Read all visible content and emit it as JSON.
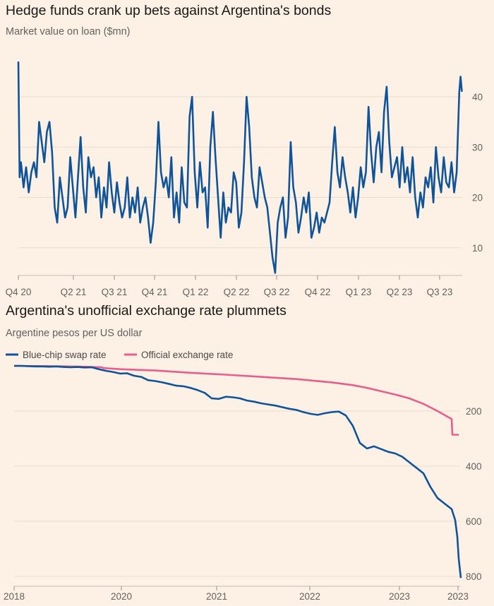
{
  "chart_data": [
    {
      "type": "line",
      "title": "Hedge funds crank up bets against Argentina's bonds",
      "subtitle": "Market value on loan ($mn)",
      "x_ticks": [
        "Q4 20",
        "Q2 21",
        "Q3 21",
        "Q4 21",
        "Q1 22",
        "Q2 22",
        "Q3 22",
        "Q4 22",
        "Q1 23",
        "Q2 23",
        "Q3 23"
      ],
      "y_ticks": [
        10,
        20,
        30,
        40
      ],
      "ylim": [
        4.5,
        48
      ],
      "xlim": [
        0,
        34.5
      ],
      "grid": true,
      "series": [
        {
          "color": "#0f5499",
          "x": [
            0,
            0.1,
            0.2,
            0.4,
            0.6,
            0.8,
            1.0,
            1.2,
            1.4,
            1.6,
            1.8,
            2.0,
            2.2,
            2.4,
            2.6,
            2.8,
            3.0,
            3.2,
            3.4,
            3.6,
            3.8,
            4.0,
            4.2,
            4.4,
            4.6,
            4.8,
            5.0,
            5.2,
            5.4,
            5.6,
            5.8,
            6.0,
            6.2,
            6.4,
            6.6,
            6.8,
            7.0,
            7.2,
            7.4,
            7.6,
            7.8,
            8.0,
            8.2,
            8.4,
            8.6,
            8.8,
            9.0,
            9.2,
            9.4,
            9.6,
            9.8,
            10.0,
            10.2,
            10.4,
            10.6,
            10.8,
            11.0,
            11.2,
            11.4,
            11.6,
            11.8,
            12.0,
            12.2,
            12.4,
            12.6,
            12.8,
            13.0,
            13.2,
            13.4,
            13.6,
            13.8,
            14.0,
            14.2,
            14.4,
            14.6,
            14.8,
            15.0,
            15.2,
            15.4,
            15.6,
            15.8,
            16.0,
            16.2,
            16.4,
            16.6,
            16.8,
            17.0,
            17.2,
            17.4,
            17.6,
            17.8,
            18.0,
            18.2,
            18.4,
            18.6,
            18.8,
            19.0,
            19.2,
            19.4,
            19.6,
            19.8,
            20.0,
            20.2,
            20.4,
            20.6,
            20.8,
            21.0,
            21.2,
            21.4,
            21.6,
            21.8,
            22.0,
            22.2,
            22.4,
            22.6,
            22.8,
            23.0,
            23.2,
            23.4,
            23.6,
            23.8,
            24.0,
            24.2,
            24.4,
            24.6,
            24.8,
            25.0,
            25.2,
            25.4,
            25.6,
            25.8,
            26.0,
            26.2,
            26.4,
            26.6,
            26.8,
            27.0,
            27.2,
            27.4,
            27.6,
            27.8,
            28.0,
            28.2,
            28.4,
            28.6,
            28.8,
            29.0,
            29.2,
            29.4,
            29.6,
            29.8,
            30.0,
            30.2,
            30.4,
            30.6,
            30.8,
            31.0,
            31.2,
            31.4,
            31.6,
            31.8,
            32.0,
            32.2,
            32.4,
            32.6,
            32.8,
            33.0,
            33.2,
            33.4,
            33.6,
            33.8,
            34.0,
            34.1,
            34.2
          ],
          "values": [
            47,
            24,
            27,
            22,
            26,
            21,
            25,
            27,
            24,
            35,
            31,
            27,
            33,
            35,
            29,
            18,
            15,
            24,
            20,
            16,
            18,
            28,
            22,
            16,
            24,
            32,
            22,
            17,
            28,
            24,
            26,
            20,
            24,
            16,
            22,
            18,
            27,
            21,
            17,
            23,
            19,
            16,
            18,
            24,
            16,
            20,
            17,
            22,
            15,
            18,
            20,
            16,
            11,
            15,
            23,
            35,
            25,
            22,
            24,
            20,
            28,
            16,
            21,
            15,
            26,
            19,
            18,
            36,
            40,
            25,
            18,
            27,
            21,
            22,
            14,
            30,
            37,
            28,
            20,
            12,
            21,
            15,
            18,
            17,
            25,
            23,
            14,
            17,
            27,
            40,
            34,
            24,
            20,
            18,
            26,
            23,
            20,
            18,
            13,
            8,
            5,
            15,
            18,
            20,
            12,
            16,
            31,
            22,
            19,
            13,
            16,
            20,
            17,
            21,
            12,
            14,
            17,
            13,
            16,
            15,
            17,
            19,
            27,
            34,
            25,
            22,
            28,
            24,
            21,
            17,
            22,
            16,
            20,
            26,
            22,
            25,
            38,
            29,
            23,
            30,
            33,
            25,
            37,
            42,
            31,
            24,
            26,
            28,
            22,
            30,
            23,
            26,
            21,
            28,
            20,
            16,
            21,
            18,
            24,
            22,
            26,
            19,
            30,
            24,
            21,
            28,
            23,
            22,
            27,
            21,
            25,
            41,
            44,
            41
          ]
        }
      ]
    },
    {
      "type": "line",
      "title": "Argentina's unofficial exchange rate plummets",
      "subtitle": "Argentine pesos per US dollar",
      "x_ticks": [
        "2018",
        "2020",
        "2021",
        "2022",
        "2023",
        "2023"
      ],
      "y_ticks": [
        200,
        400,
        600,
        800
      ],
      "ylim": [
        -20,
        820
      ],
      "y_inverted": true,
      "legend_position": "top-left",
      "grid": true,
      "series": [
        {
          "name": "Blue-chip swap rate",
          "color": "#0f5499",
          "x": [
            0,
            10,
            20,
            30,
            40,
            50,
            60,
            70,
            80,
            90,
            100,
            110,
            120,
            130,
            140,
            150,
            160,
            170,
            180,
            190,
            200,
            210,
            220,
            230,
            240,
            250,
            260,
            270,
            280,
            290,
            300,
            310,
            320,
            330,
            340,
            350,
            360,
            370,
            380,
            390,
            400,
            410,
            420,
            430,
            440,
            450,
            460,
            470,
            480,
            490,
            500,
            510,
            520,
            530,
            540,
            550,
            560,
            570,
            580,
            590,
            600,
            610,
            620,
            625,
            628,
            630,
            633
          ],
          "values": [
            0,
            0,
            1,
            2,
            2,
            3,
            2,
            4,
            5,
            4,
            6,
            5,
            12,
            18,
            22,
            28,
            27,
            36,
            40,
            52,
            55,
            60,
            66,
            72,
            74,
            80,
            88,
            98,
            118,
            120,
            112,
            114,
            118,
            126,
            130,
            136,
            140,
            144,
            150,
            156,
            160,
            168,
            174,
            178,
            172,
            168,
            166,
            180,
            218,
            280,
            300,
            292,
            302,
            312,
            318,
            330,
            350,
            370,
            390,
            440,
            480,
            500,
            520,
            560,
            620,
            700,
            770
          ]
        },
        {
          "name": "Official exchange rate",
          "color": "#e95d8c",
          "x": [
            0,
            50,
            100,
            125,
            126,
            150,
            200,
            250,
            300,
            350,
            400,
            450,
            480,
            500,
            520,
            540,
            560,
            580,
            600,
            620,
            621,
            630
          ],
          "values": [
            0,
            1,
            3,
            5,
            8,
            12,
            17,
            25,
            32,
            40,
            48,
            60,
            70,
            80,
            92,
            104,
            118,
            138,
            164,
            193,
            250,
            250
          ]
        }
      ]
    }
  ]
}
